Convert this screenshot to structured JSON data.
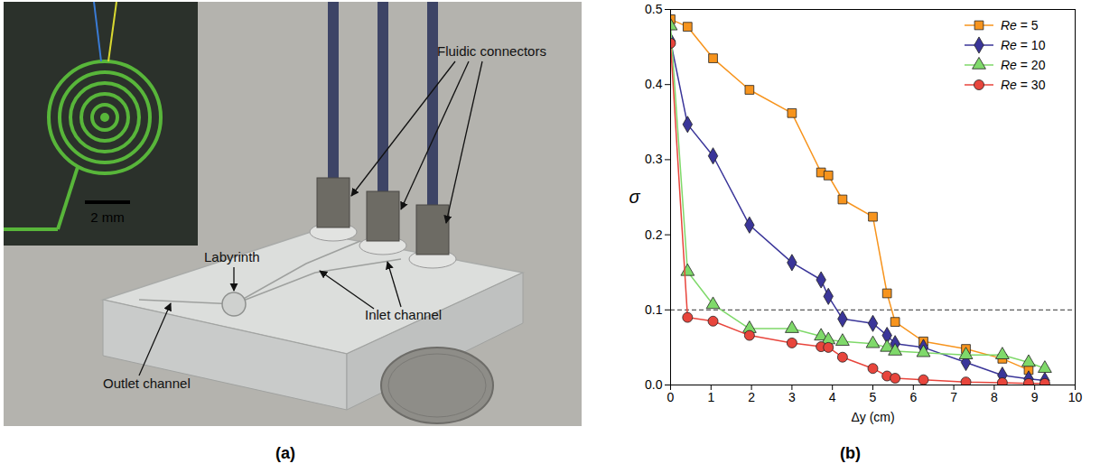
{
  "panel_labels": [
    "(a)",
    "(b)"
  ],
  "photo": {
    "annotations": [
      "Fluidic connectors",
      "Labyrinth",
      "Inlet channel",
      "Outlet channel"
    ],
    "scale_bar": "2 mm"
  },
  "chart_data": {
    "type": "line",
    "x_label": "Δy (cm)",
    "y_label": "σ",
    "xlim": [
      0,
      10
    ],
    "xticks": [
      0,
      1,
      2,
      3,
      4,
      5,
      6,
      7,
      8,
      9,
      10
    ],
    "ylim": [
      0,
      0.5
    ],
    "yticks": [
      {
        "value": 0,
        "label": "0.0"
      },
      {
        "value": 0.1,
        "label": "0.1"
      },
      {
        "value": 0.2,
        "label": "0.2"
      },
      {
        "value": 0.3,
        "label": "0.3"
      },
      {
        "value": 0.4,
        "label": "0.4"
      },
      {
        "value": 0.5,
        "label": "0.5"
      }
    ],
    "legend": "top-right",
    "reference_lines": [
      {
        "y": 0.1,
        "line_style": "dashed"
      }
    ],
    "series": [
      {
        "name": "Re = 5",
        "color": "#f7941d",
        "marker": "square",
        "x": [
          0,
          0.42,
          1.05,
          1.95,
          3.0,
          3.72,
          3.9,
          4.25,
          5.0,
          5.35,
          5.55,
          6.25,
          7.3,
          8.2,
          8.85
        ],
        "values": [
          0.487,
          0.477,
          0.435,
          0.393,
          0.362,
          0.283,
          0.279,
          0.247,
          0.224,
          0.122,
          0.084,
          0.058,
          0.048,
          0.035,
          0.02
        ]
      },
      {
        "name": "Re = 10",
        "color": "#3a3599",
        "marker": "diamond",
        "x": [
          0,
          0.42,
          1.05,
          1.95,
          3.0,
          3.72,
          3.9,
          4.25,
          5.0,
          5.35,
          5.55,
          6.25,
          7.3,
          8.2,
          8.85,
          9.25
        ],
        "values": [
          0.458,
          0.347,
          0.305,
          0.213,
          0.163,
          0.14,
          0.118,
          0.088,
          0.082,
          0.066,
          0.055,
          0.05,
          0.03,
          0.013,
          0.008,
          0.006
        ]
      },
      {
        "name": "Re = 20",
        "color": "#7fd96a",
        "marker": "triangle",
        "x": [
          0,
          0.42,
          1.05,
          1.95,
          3.0,
          3.72,
          3.9,
          4.25,
          5.0,
          5.35,
          5.55,
          6.25,
          7.3,
          8.2,
          8.85,
          9.25
        ],
        "values": [
          0.478,
          0.151,
          0.107,
          0.075,
          0.075,
          0.065,
          0.06,
          0.058,
          0.055,
          0.05,
          0.045,
          0.043,
          0.04,
          0.04,
          0.03,
          0.022
        ]
      },
      {
        "name": "Re = 30",
        "color": "#e8453c",
        "marker": "circle",
        "x": [
          0,
          0.42,
          1.05,
          1.95,
          3.0,
          3.72,
          3.9,
          4.25,
          5.0,
          5.35,
          5.55,
          6.25,
          7.3,
          8.2,
          8.85,
          9.25
        ],
        "values": [
          0.455,
          0.09,
          0.085,
          0.066,
          0.056,
          0.051,
          0.05,
          0.037,
          0.022,
          0.012,
          0.009,
          0.007,
          0.004,
          0.003,
          0.002,
          0.002
        ]
      }
    ]
  }
}
